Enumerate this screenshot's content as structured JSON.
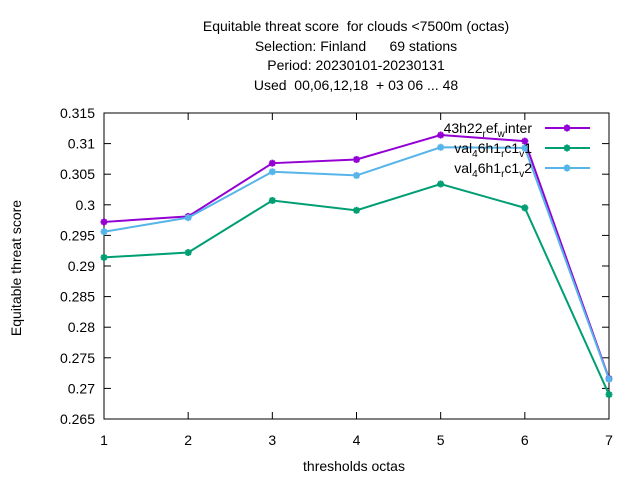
{
  "chart_data": {
    "type": "line",
    "title_lines": [
      "Equitable threat score  for clouds <7500m (octas)",
      "Selection: Finland      69 stations",
      "Period: 20230101-20230131",
      "Used  00,06,12,18  + 03 06 ... 48"
    ],
    "xlabel": "thresholds octas",
    "ylabel": "Equitable threat score",
    "x": [
      1,
      2,
      3,
      4,
      5,
      6,
      7
    ],
    "xlim": [
      1,
      7
    ],
    "ylim": [
      0.265,
      0.315
    ],
    "yticks": [
      "0.265",
      "0.27",
      "0.275",
      "0.28",
      "0.285",
      "0.29",
      "0.295",
      "0.3",
      "0.305",
      "0.31",
      "0.315"
    ],
    "xticks": [
      "1",
      "2",
      "3",
      "4",
      "5",
      "6",
      "7"
    ],
    "grid": false,
    "legend_position": "top-right",
    "series": [
      {
        "name": "43h22_ref_winter",
        "legend_parts": [
          "43h22",
          "r",
          "ef",
          "w",
          "inter"
        ],
        "color": "#9400d3",
        "values": [
          0.2972,
          0.2981,
          0.3068,
          0.3074,
          0.3114,
          0.3104,
          0.2716
        ]
      },
      {
        "name": "val_4_6h1_rc1_v1",
        "legend_parts": [
          "val",
          "4",
          "6h1",
          "r",
          "c1",
          "v",
          "1"
        ],
        "color": "#009e73",
        "values": [
          0.2914,
          0.2922,
          0.3007,
          0.2991,
          0.3034,
          0.2995,
          0.269
        ]
      },
      {
        "name": "val_4_6h1_rc1_v2",
        "legend_parts": [
          "val",
          "4",
          "6h1",
          "r",
          "c1",
          "v",
          "2"
        ],
        "color": "#56b4e9",
        "values": [
          0.2956,
          0.2979,
          0.3054,
          0.3048,
          0.3094,
          0.3093,
          0.2715
        ]
      }
    ]
  }
}
